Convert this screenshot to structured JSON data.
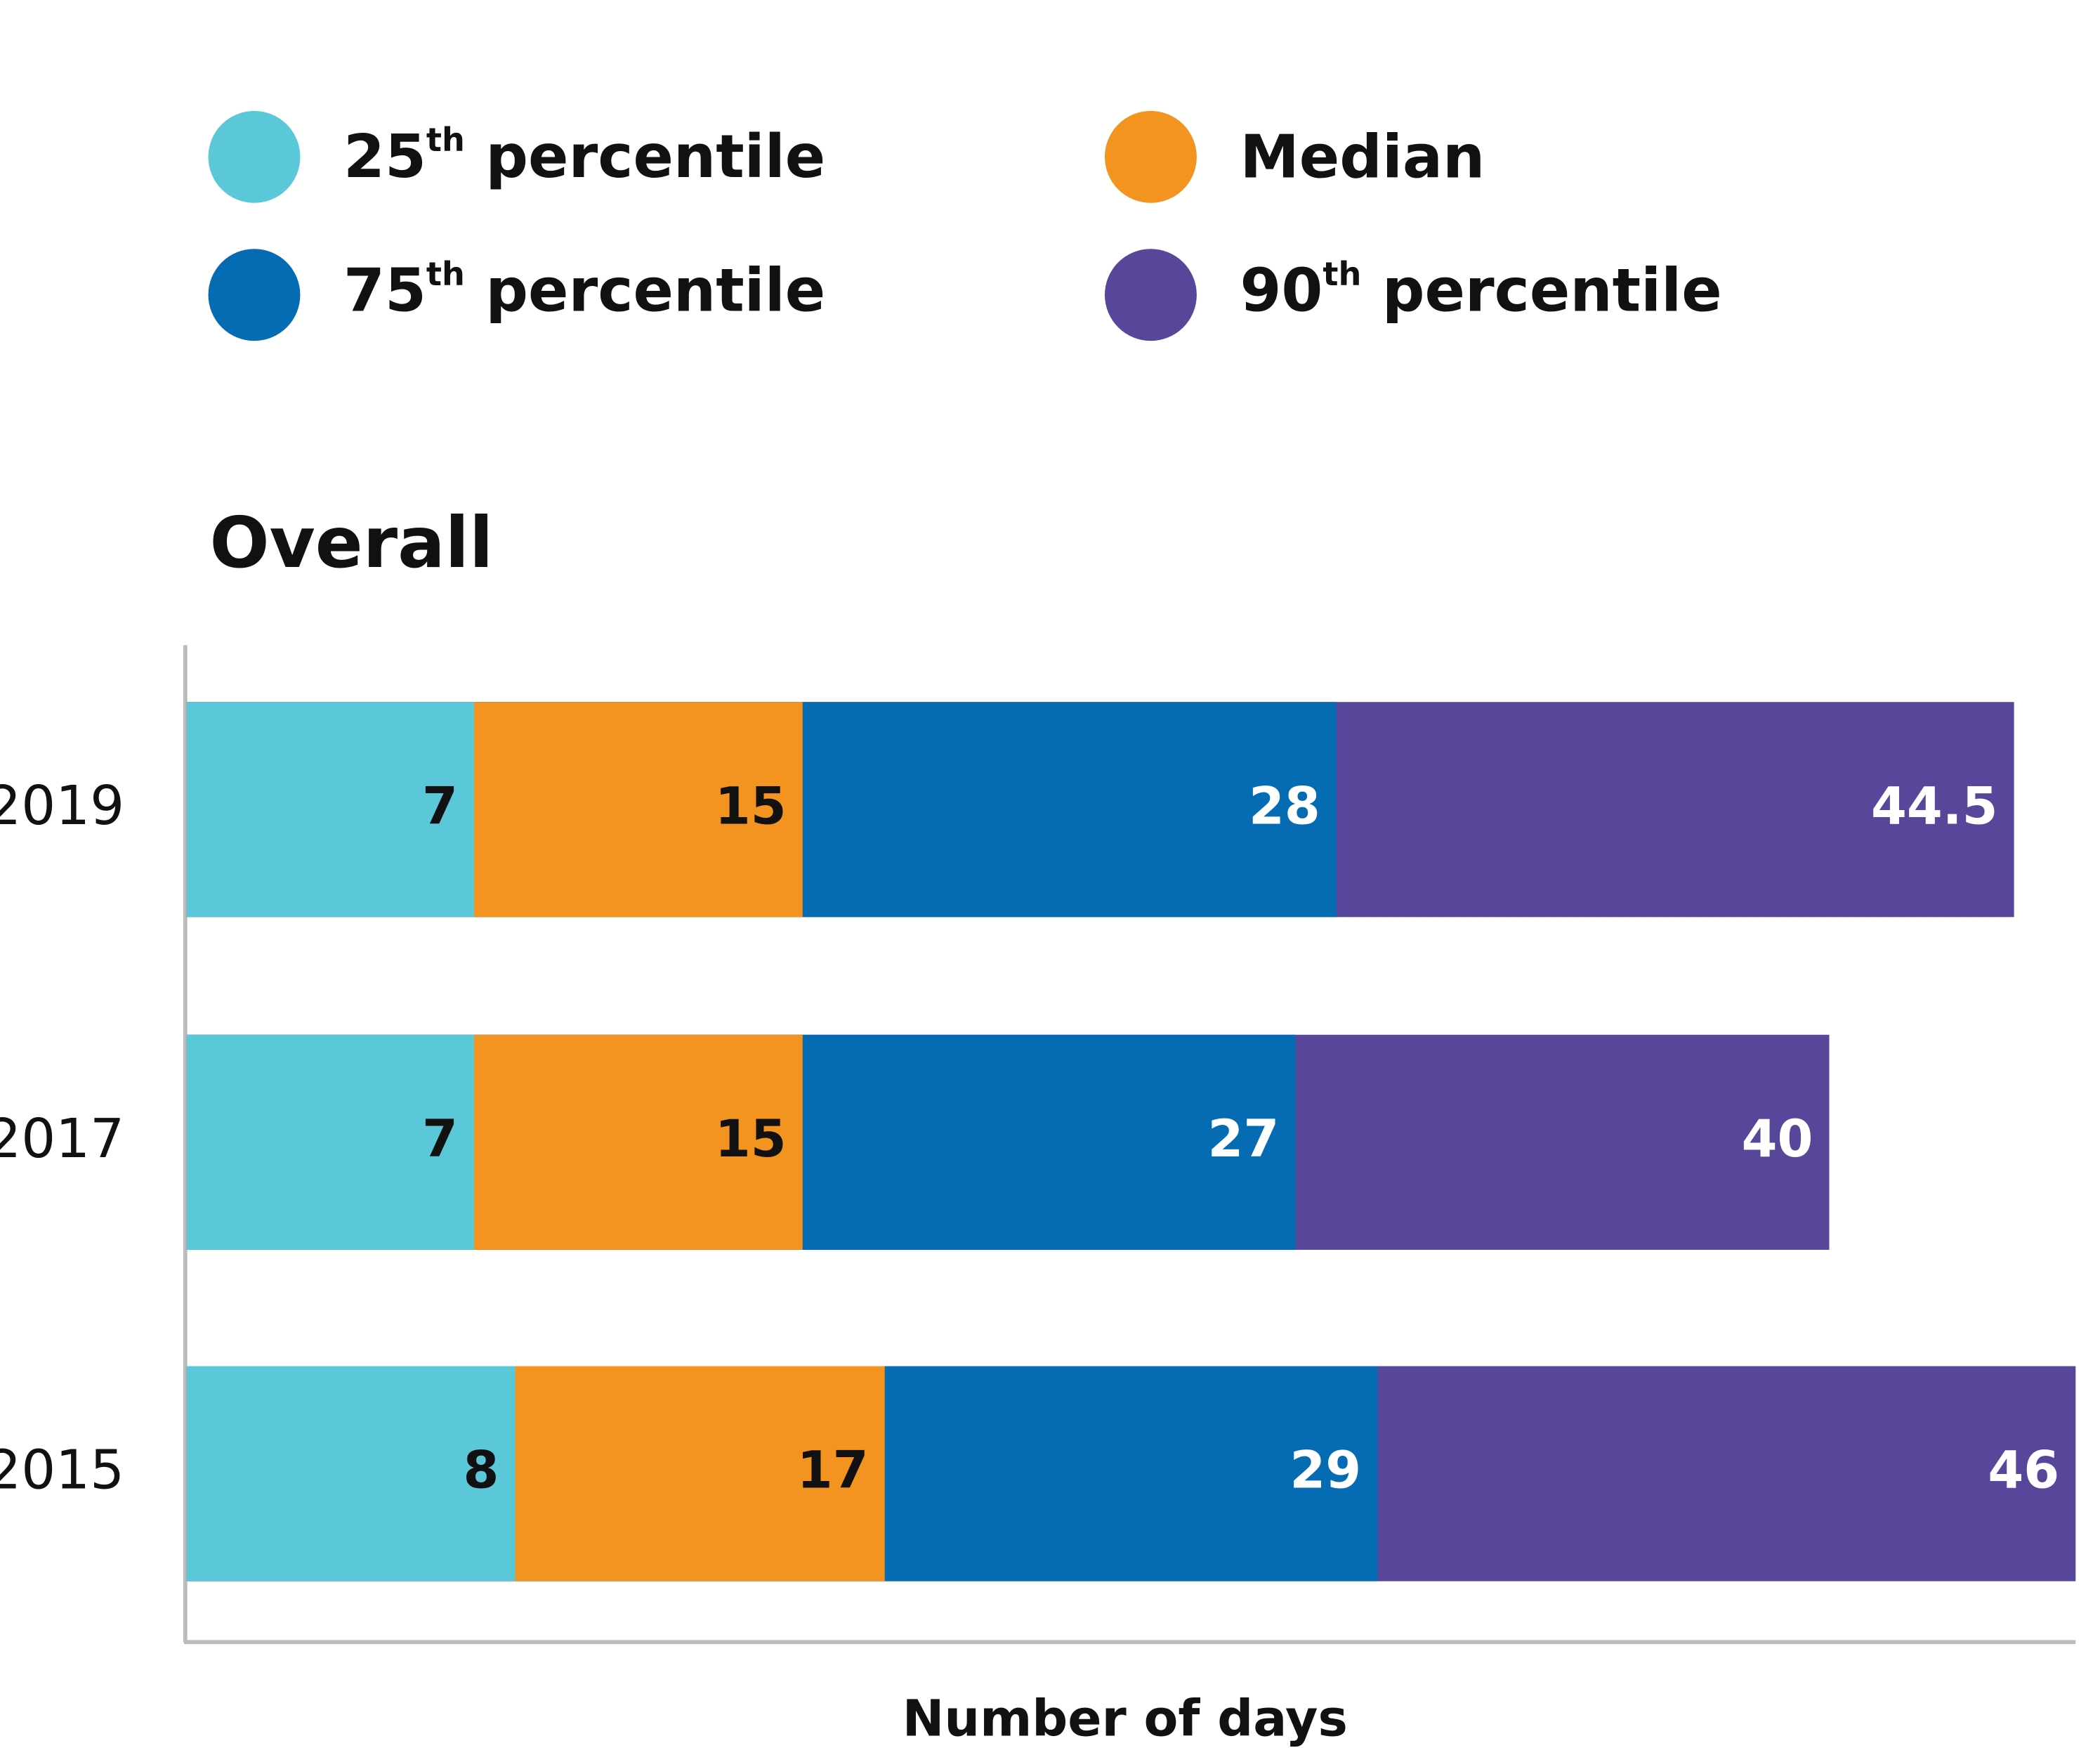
{
  "chart_data": {
    "type": "overlapping-bar",
    "title": "Overall",
    "x_label": "Number of days",
    "categories": [
      "2019",
      "2017",
      "2015"
    ],
    "series": [
      {
        "name": "25th percentile",
        "color": "#5bc8da",
        "label_color": "#111111",
        "values": [
          7,
          7,
          8
        ]
      },
      {
        "name": "Median",
        "color": "#f39320",
        "label_color": "#111111",
        "values": [
          15,
          15,
          17
        ]
      },
      {
        "name": "75th percentile",
        "color": "#056cb4",
        "label_color": "#ffffff",
        "values": [
          28,
          27,
          29
        ]
      },
      {
        "name": "90th percentile",
        "color": "#58469b",
        "label_color": "#ffffff",
        "values": [
          44.5,
          40,
          46
        ]
      }
    ],
    "xlim": [
      0,
      46
    ]
  }
}
